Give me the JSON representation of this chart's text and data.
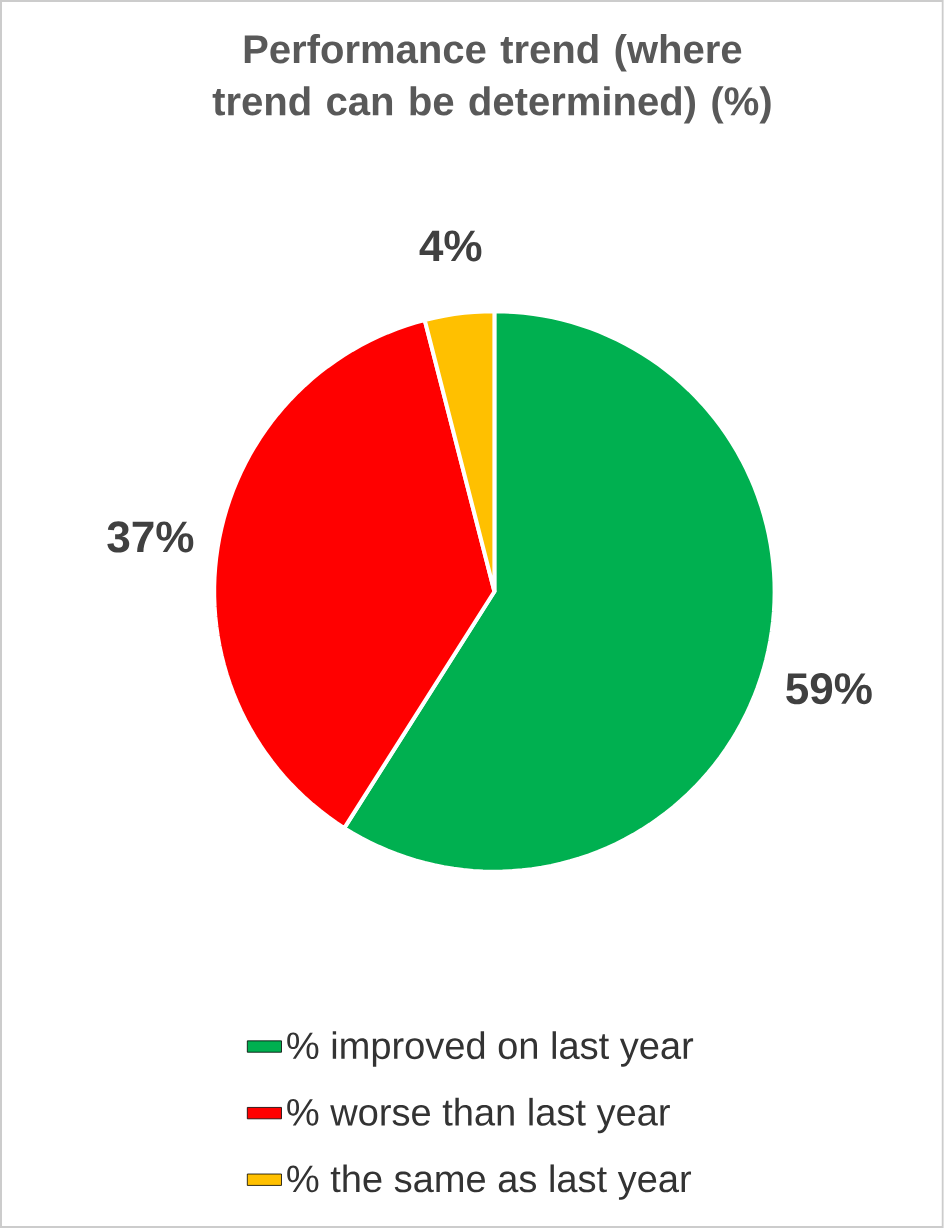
{
  "chart_data": {
    "type": "pie",
    "title": "Performance trend (where trend can be determined) (%)",
    "categories": [
      "% improved on last year",
      "% worse than last year",
      "% the same as last year"
    ],
    "values": [
      59,
      37,
      4
    ],
    "value_labels": [
      "59%",
      "37%",
      "4%"
    ],
    "colors": [
      "#00b050",
      "#ff0000",
      "#ffc000"
    ],
    "legend": "bottom"
  }
}
